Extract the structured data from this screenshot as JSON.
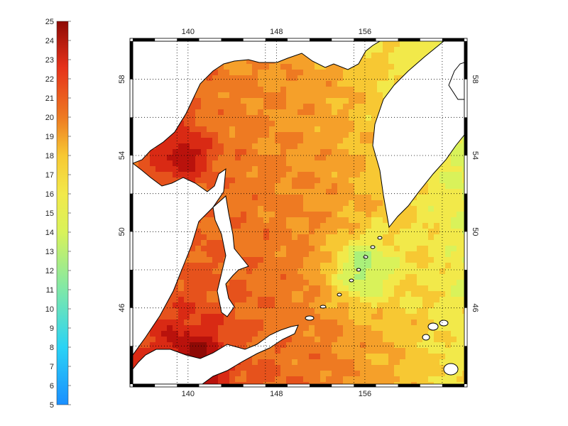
{
  "colorbar": {
    "ticks": [
      "5",
      "6",
      "7",
      "8",
      "9",
      "10",
      "11",
      "12",
      "13",
      "14",
      "15",
      "16",
      "17",
      "18",
      "19",
      "20",
      "21",
      "22",
      "23",
      "24",
      "25"
    ],
    "min": 5,
    "max": 25
  },
  "map": {
    "lon_range": [
      135,
      165
    ],
    "lat_range": [
      42,
      60
    ],
    "lon_ticks": [
      "140",
      "148",
      "156"
    ],
    "lon_tick_values": [
      140,
      148,
      156
    ],
    "lat_ticks": [
      "46",
      "50",
      "54",
      "58"
    ],
    "lat_tick_values": [
      46,
      50,
      54,
      58
    ],
    "grid": true,
    "frame": "black-white checkered border",
    "land_color": "#ffffff",
    "coast_color": "#000000"
  },
  "palette": [
    "#1a8fff",
    "#1fb2ff",
    "#2ad3f5",
    "#4fe0d6",
    "#7fe8a8",
    "#aaf07a",
    "#d9f25a",
    "#f2e94a",
    "#f7c833",
    "#f5a02a",
    "#ee7a22",
    "#e6521c",
    "#d92a14",
    "#b9120c",
    "#8e0a06"
  ],
  "colors": {
    "background": "#ffffff",
    "grid": "#000000"
  }
}
